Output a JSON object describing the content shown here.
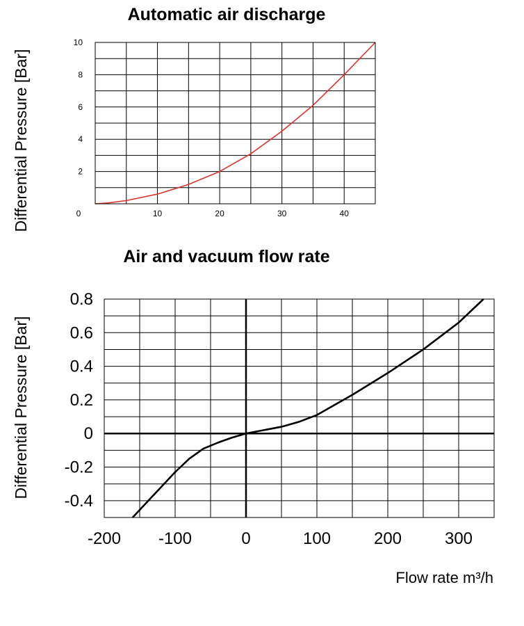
{
  "chart_data": [
    {
      "type": "line",
      "title": "Automatic air discharge",
      "ylabel": "Differential Pressure [Bar]",
      "xlabel": "",
      "xlim": [
        0,
        45
      ],
      "ylim": [
        0,
        10
      ],
      "x_ticks": [
        10,
        20,
        30,
        40
      ],
      "y_ticks": [
        2,
        4,
        6,
        8,
        10
      ],
      "origin_label": "0",
      "grid": true,
      "color": "#e0302a",
      "series": [
        {
          "x": [
            0,
            2,
            5,
            10,
            15,
            20,
            25,
            30,
            35,
            40,
            45
          ],
          "y": [
            0,
            0.05,
            0.2,
            0.6,
            1.2,
            2.0,
            3.1,
            4.5,
            6.1,
            8.0,
            10.0
          ]
        }
      ]
    },
    {
      "type": "line",
      "title": "Air and vacuum flow rate",
      "ylabel": "Differential Pressure [Bar]",
      "xlabel": "Flow rate m³/h",
      "xlim": [
        -200,
        350
      ],
      "ylim": [
        -0.5,
        0.8
      ],
      "x_ticks": [
        -200,
        -100,
        0,
        100,
        200,
        300
      ],
      "y_ticks": [
        0.8,
        0.6,
        0.4,
        0.2,
        0,
        -0.2,
        -0.4
      ],
      "x_tick_labels": [
        "-200",
        "-100",
        "0",
        "100",
        "200",
        "300"
      ],
      "y_tick_labels": [
        "0.8",
        "0.6",
        "0.4",
        "0.2",
        "0",
        "-0.2",
        "-0.4"
      ],
      "grid": true,
      "color": "#000000",
      "series": [
        {
          "x": [
            -160,
            -140,
            -120,
            -100,
            -80,
            -60,
            -40,
            -20,
            0,
            25,
            50,
            75,
            100,
            150,
            200,
            250,
            300,
            335
          ],
          "y": [
            -0.5,
            -0.41,
            -0.32,
            -0.23,
            -0.15,
            -0.09,
            -0.055,
            -0.025,
            0,
            0.02,
            0.04,
            0.07,
            0.11,
            0.23,
            0.36,
            0.5,
            0.66,
            0.8
          ]
        }
      ]
    }
  ]
}
